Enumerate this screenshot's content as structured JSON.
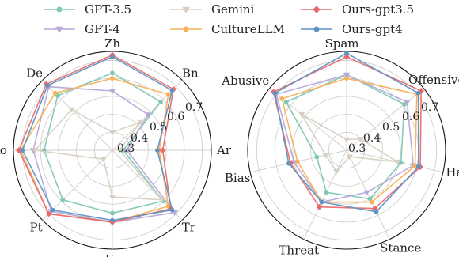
{
  "legend": [
    {
      "name": "GPT-3.5",
      "color": "#7ec8b4",
      "marker": "circle"
    },
    {
      "name": "Gemini",
      "color": "#d8cfc0",
      "marker": "triangle-down"
    },
    {
      "name": "Ours-gpt3.5",
      "color": "#ea6a6a",
      "marker": "diamond"
    },
    {
      "name": "GPT-4",
      "color": "#b7a9d9",
      "marker": "triangle-down"
    },
    {
      "name": "CultureLLM",
      "color": "#f7b15a",
      "marker": "circle"
    },
    {
      "name": "Ours-gpt4",
      "color": "#5f93c5",
      "marker": "circle"
    }
  ],
  "chart_data": [
    {
      "type": "radar",
      "axes": [
        "Zh",
        "Bn",
        "Ar",
        "Tr",
        "Es",
        "Pt",
        "Ko",
        "De"
      ],
      "tick_labels": [
        "0.3",
        "0.4",
        "0.5",
        "0.6",
        "0.7"
      ],
      "rlim": [
        0.2,
        0.75
      ],
      "series": [
        {
          "name": "GPT-3.5",
          "values": [
            0.63,
            0.58,
            0.26,
            0.6,
            0.55,
            0.59,
            0.58,
            0.63
          ]
        },
        {
          "name": "GPT-4",
          "values": [
            0.53,
            0.48,
            0.28,
            0.69,
            0.6,
            0.68,
            0.64,
            0.7
          ]
        },
        {
          "name": "Gemini",
          "values": [
            0.3,
            0.42,
            0.24,
            0.59,
            0.46,
            0.27,
            0.63,
            0.52
          ]
        },
        {
          "name": "CultureLLM",
          "values": [
            0.6,
            0.64,
            0.46,
            0.64,
            0.6,
            0.7,
            0.71,
            0.65
          ]
        },
        {
          "name": "Ours-gpt3.5",
          "values": [
            0.73,
            0.68,
            0.48,
            0.66,
            0.6,
            0.7,
            0.72,
            0.72
          ]
        },
        {
          "name": "Ours-gpt4",
          "values": [
            0.72,
            0.67,
            0.45,
            0.67,
            0.59,
            0.67,
            0.7,
            0.71
          ]
        }
      ]
    },
    {
      "type": "radar",
      "axes": [
        "Spam",
        "Offensive",
        "Hate",
        "Stance",
        "Threat",
        "Bias",
        "Abusive"
      ],
      "tick_labels": [
        "0.3",
        "0.4",
        "0.5",
        "0.6",
        "0.7"
      ],
      "rlim": [
        0.2,
        0.75
      ],
      "series": [
        {
          "name": "GPT-3.5",
          "values": [
            0.62,
            0.61,
            0.51,
            0.5,
            0.46,
            0.37,
            0.63
          ]
        },
        {
          "name": "GPT-4",
          "values": [
            0.62,
            0.63,
            0.58,
            0.46,
            0.52,
            0.5,
            0.7
          ]
        },
        {
          "name": "Gemini",
          "values": [
            0.26,
            0.3,
            0.49,
            0.24,
            0.33,
            0.32,
            0.52
          ]
        },
        {
          "name": "CultureLLM",
          "values": [
            0.6,
            0.7,
            0.59,
            0.52,
            0.52,
            0.48,
            0.66
          ]
        },
        {
          "name": "Ours-gpt3.5",
          "values": [
            0.72,
            0.73,
            0.62,
            0.56,
            0.55,
            0.52,
            0.72
          ]
        },
        {
          "name": "Ours-gpt4",
          "values": [
            0.74,
            0.71,
            0.61,
            0.58,
            0.52,
            0.53,
            0.71
          ]
        }
      ]
    }
  ]
}
